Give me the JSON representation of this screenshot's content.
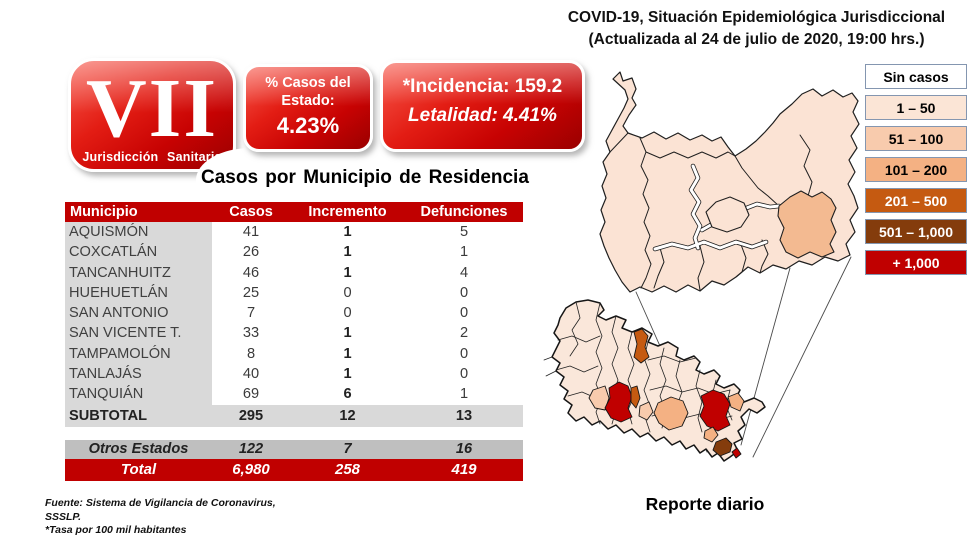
{
  "header": {
    "line1": "COVID-19, Situación Epidemiológica Jurisdiccional",
    "line2": "(Actualizada al 24 de julio de 2020, 19:00 hrs.)"
  },
  "badge": {
    "roman": "VII",
    "label": "Jurisdicción Sanitaria"
  },
  "stats": {
    "percent_label_line1": "% Casos del",
    "percent_label_line2": "Estado:",
    "percent_value": "4.23%",
    "incidence": "*Incidencia: 159.2",
    "lethality": "Letalidad: 4.41%"
  },
  "table": {
    "title": "Casos por Municipio de Residencia",
    "columns": [
      "Municipio",
      "Casos",
      "Incremento",
      "Defunciones"
    ],
    "rows": [
      [
        "AQUISMÓN",
        "41",
        "1",
        "5"
      ],
      [
        "COXCATLÁN",
        "26",
        "1",
        "1"
      ],
      [
        "TANCANHUITZ",
        "46",
        "1",
        "4"
      ],
      [
        "HUEHUETLÁN",
        "25",
        "0",
        "0"
      ],
      [
        "SAN ANTONIO",
        "7",
        "0",
        "0"
      ],
      [
        "SAN VICENTE T.",
        "33",
        "1",
        "2"
      ],
      [
        "TAMPAMOLÓN",
        "8",
        "1",
        "0"
      ],
      [
        "TANLAJÁS",
        "40",
        "1",
        "0"
      ],
      [
        "TANQUIÁN",
        "69",
        "6",
        "1"
      ]
    ],
    "subtotal": [
      "SUBTOTAL",
      "295",
      "12",
      "13"
    ],
    "otros": [
      "Otros Estados",
      "122",
      "7",
      "16"
    ],
    "total": [
      "Total",
      "6,980",
      "258",
      "419"
    ]
  },
  "legend": {
    "items": [
      {
        "label": "Sin casos",
        "fill": "white",
        "text": "#000000"
      },
      {
        "label": "1 – 50",
        "fill": "c1_50",
        "text": "#000000"
      },
      {
        "label": "51 – 100",
        "fill": "c51_100",
        "text": "#000000"
      },
      {
        "label": "101 – 200",
        "fill": "c101_200",
        "text": "#000000"
      },
      {
        "label": "201 – 500",
        "fill": "c201_500",
        "text": "#FFFFFF"
      },
      {
        "label": "501 – 1,000",
        "fill": "c501_1000",
        "text": "#FFFFFF"
      },
      {
        "label": "+ 1,000",
        "fill": "c1000plus",
        "text": "#FFFFFF"
      }
    ]
  },
  "footnote": {
    "line1": "Fuente: Sistema de Vigilancia  de Coronavirus,",
    "line2": "SSSLP.",
    "line3": "*Tasa por 100 mil habitantes"
  },
  "map": {
    "caption": "Reporte diario"
  },
  "palette": {
    "white": "#FFFFFF",
    "c1_50": "#FBE5D6",
    "c51_100": "#F8CBAD",
    "c101_200": "#F4B183",
    "c201_500": "#C55A11",
    "c501_1000": "#843C0C",
    "c1000plus": "#C00000",
    "accent_red": "#C00000",
    "row_gray": "#D9D9D9",
    "otros_gray": "#BFBFBF",
    "legend_border": "#8496B0",
    "jurisdiction_fill": "#FBE3D4",
    "state_fill": "#FAE7DA",
    "highlight_east": "#F3BA91"
  }
}
